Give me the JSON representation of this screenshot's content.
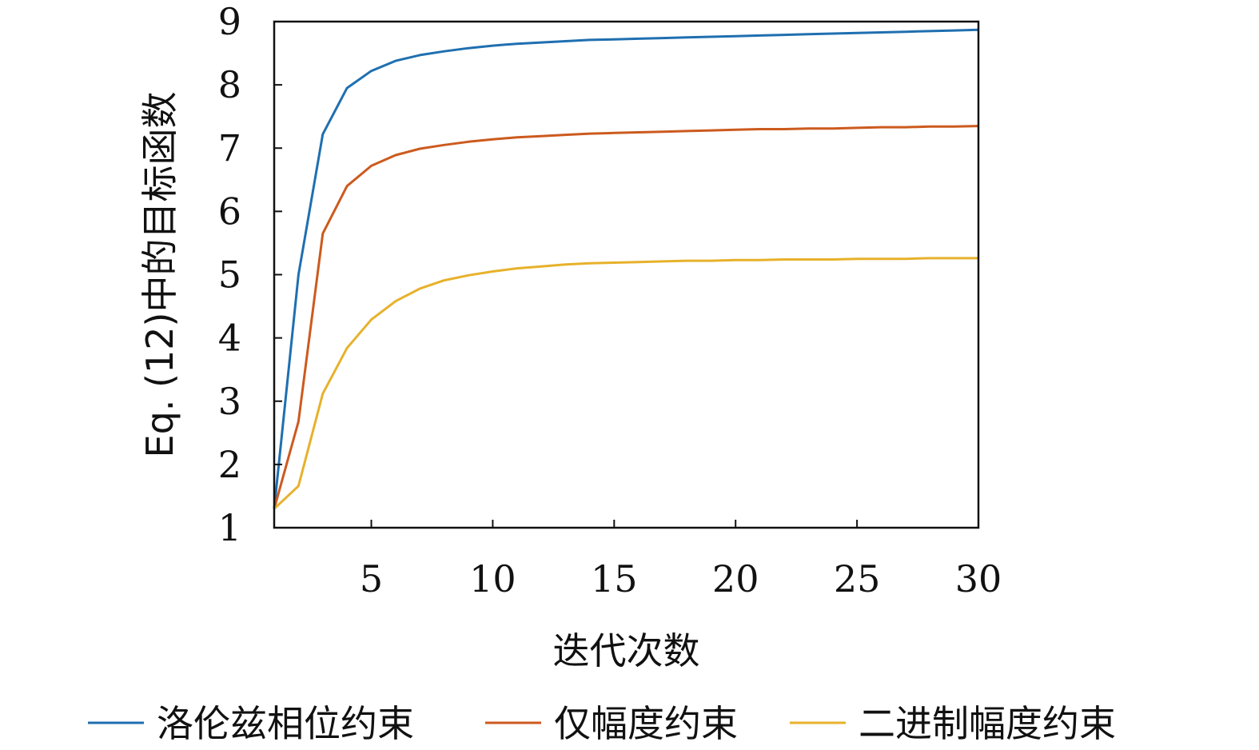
{
  "chart_data": {
    "type": "line",
    "xlabel": "迭代次数",
    "ylabel": "Eq. (12)中的目标函数",
    "xlim": [
      1,
      30
    ],
    "ylim": [
      1,
      9
    ],
    "x_ticks": [
      5,
      10,
      15,
      20,
      25,
      30
    ],
    "y_ticks": [
      1,
      2,
      3,
      4,
      5,
      6,
      7,
      8,
      9
    ],
    "grid": false,
    "legend_position": "bottom",
    "x": [
      1,
      2,
      3,
      4,
      5,
      6,
      7,
      8,
      9,
      10,
      11,
      12,
      13,
      14,
      15,
      16,
      17,
      18,
      19,
      20,
      21,
      22,
      23,
      24,
      25,
      26,
      27,
      28,
      29,
      30
    ],
    "series": [
      {
        "name": "洛伦兹相位约束",
        "color": "#1f6fb0",
        "values": [
          1.3,
          5.0,
          7.22,
          7.95,
          8.22,
          8.38,
          8.47,
          8.53,
          8.58,
          8.62,
          8.65,
          8.67,
          8.69,
          8.71,
          8.72,
          8.73,
          8.74,
          8.75,
          8.76,
          8.77,
          8.78,
          8.79,
          8.8,
          8.81,
          8.82,
          8.83,
          8.84,
          8.85,
          8.86,
          8.87
        ]
      },
      {
        "name": "仅幅度约束",
        "color": "#cc5a1e",
        "values": [
          1.3,
          2.68,
          5.65,
          6.4,
          6.72,
          6.89,
          6.99,
          7.05,
          7.1,
          7.14,
          7.17,
          7.19,
          7.21,
          7.23,
          7.24,
          7.25,
          7.26,
          7.27,
          7.28,
          7.29,
          7.3,
          7.3,
          7.31,
          7.31,
          7.32,
          7.33,
          7.33,
          7.34,
          7.34,
          7.35
        ]
      },
      {
        "name": "二进制幅度约束",
        "color": "#e7b12b",
        "values": [
          1.3,
          1.66,
          3.12,
          3.84,
          4.29,
          4.58,
          4.78,
          4.91,
          4.99,
          5.05,
          5.1,
          5.13,
          5.16,
          5.18,
          5.19,
          5.2,
          5.21,
          5.22,
          5.22,
          5.23,
          5.23,
          5.24,
          5.24,
          5.24,
          5.25,
          5.25,
          5.25,
          5.26,
          5.26,
          5.26
        ]
      }
    ]
  }
}
